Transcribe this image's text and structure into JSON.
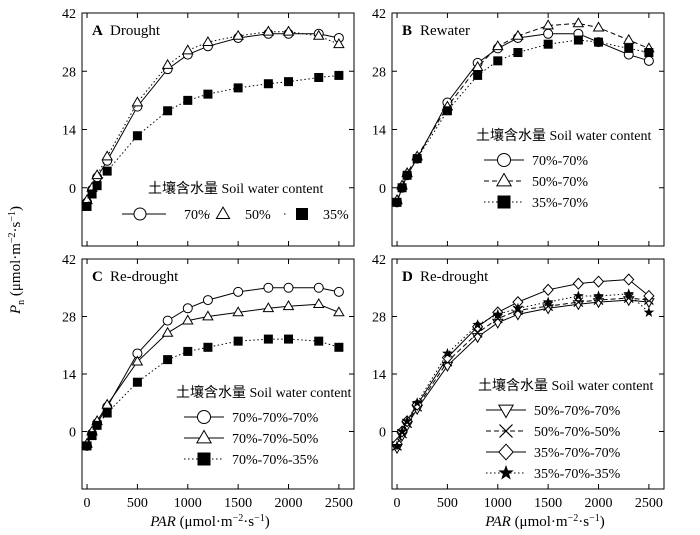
{
  "figure": {
    "xlabel": "PAR (μmol·m⁻²·s⁻¹)",
    "ylabel": "Pn (μmol·m⁻²·s⁻¹)"
  },
  "chart_data": [
    {
      "type": "line",
      "letter": "A",
      "title": "Drought",
      "xlim": [
        -50,
        2650
      ],
      "ylim": [
        -14,
        42
      ],
      "xticks": [
        0,
        500,
        1000,
        1500,
        2000,
        2500
      ],
      "yticks": [
        0,
        14,
        28,
        42
      ],
      "legend_title": "土壤含水量 Soil water content",
      "legend_layout": "row",
      "x": [
        0,
        50,
        100,
        200,
        500,
        800,
        1000,
        1200,
        1500,
        1800,
        2000,
        2300,
        2500
      ],
      "series": [
        {
          "name": "70%",
          "marker": "circle",
          "linestyle": "solid",
          "values": [
            -3.5,
            -0.5,
            2.5,
            6.5,
            19.5,
            28.5,
            32,
            34,
            36,
            37,
            37,
            37,
            36
          ]
        },
        {
          "name": "50%",
          "marker": "triangle-up",
          "linestyle": "dotted",
          "values": [
            -3,
            0,
            3,
            7.5,
            20.5,
            29.5,
            33,
            35,
            36.5,
            37.5,
            37.5,
            36.5,
            34.5
          ]
        },
        {
          "name": "35%",
          "marker": "square",
          "linestyle": "dotted",
          "values": [
            -4.5,
            -1.5,
            0.5,
            4,
            12.5,
            18.5,
            21,
            22.5,
            24,
            25,
            25.5,
            26.5,
            27
          ]
        }
      ]
    },
    {
      "type": "line",
      "letter": "B",
      "title": "Rewater",
      "xlim": [
        -50,
        2650
      ],
      "ylim": [
        -14,
        42
      ],
      "xticks": [
        0,
        500,
        1000,
        1500,
        2000,
        2500
      ],
      "yticks": [
        0,
        14,
        28,
        42
      ],
      "legend_title": "土壤含水量 Soil water content",
      "legend_layout": "column",
      "x": [
        0,
        50,
        100,
        200,
        500,
        800,
        1000,
        1200,
        1500,
        1800,
        2000,
        2300,
        2500
      ],
      "series": [
        {
          "name": "70%-70%",
          "marker": "circle",
          "linestyle": "solid",
          "values": [
            -3.5,
            0,
            3,
            7,
            20.5,
            30,
            33.5,
            36,
            37,
            37,
            35,
            32,
            30.5
          ]
        },
        {
          "name": "50%-70%",
          "marker": "triangle-up",
          "linestyle": "dashed",
          "values": [
            -3,
            0.5,
            3.5,
            7.5,
            19.5,
            29,
            34,
            36.5,
            39,
            39.5,
            38.5,
            35.5,
            33.5
          ]
        },
        {
          "name": "35%-70%",
          "marker": "square",
          "linestyle": "dotted",
          "values": [
            -3.5,
            0,
            3,
            7,
            18.5,
            27,
            30.5,
            32.5,
            34.5,
            35.5,
            35,
            33.5,
            32.5
          ]
        }
      ]
    },
    {
      "type": "line",
      "letter": "C",
      "title": "Re-drought",
      "xlim": [
        -50,
        2650
      ],
      "ylim": [
        -14,
        42
      ],
      "xticks": [
        0,
        500,
        1000,
        1500,
        2000,
        2500
      ],
      "yticks": [
        0,
        14,
        28,
        42
      ],
      "legend_title": "土壤含水量 Soil water content",
      "legend_layout": "column",
      "x": [
        0,
        50,
        100,
        200,
        500,
        800,
        1000,
        1200,
        1500,
        1800,
        2000,
        2300,
        2500
      ],
      "series": [
        {
          "name": "70%-70%-70%",
          "marker": "circle",
          "linestyle": "solid",
          "values": [
            -3.5,
            -0.5,
            2,
            6,
            19,
            27,
            30,
            32,
            34,
            35,
            35,
            35,
            34
          ]
        },
        {
          "name": "70%-70%-50%",
          "marker": "triangle-up",
          "linestyle": "solid",
          "values": [
            -3,
            0,
            2.5,
            6.5,
            17,
            24,
            27,
            28,
            29,
            30,
            30.5,
            31,
            29
          ]
        },
        {
          "name": "70%-70%-35%",
          "marker": "square",
          "linestyle": "dotted",
          "values": [
            -3.5,
            -1,
            1.5,
            4.5,
            12,
            17.5,
            19.5,
            20.5,
            22,
            22.5,
            22.5,
            22,
            20.5
          ]
        }
      ]
    },
    {
      "type": "line",
      "letter": "D",
      "title": "Re-drought",
      "xlim": [
        -50,
        2650
      ],
      "ylim": [
        -14,
        42
      ],
      "xticks": [
        0,
        500,
        1000,
        1500,
        2000,
        2500
      ],
      "yticks": [
        0,
        14,
        28,
        42
      ],
      "legend_title": "土壤含水量 Soil water content",
      "legend_layout": "column",
      "x": [
        0,
        50,
        100,
        200,
        500,
        800,
        1000,
        1200,
        1500,
        1800,
        2000,
        2300,
        2500
      ],
      "series": [
        {
          "name": "50%-70%-70%",
          "marker": "triangle-down",
          "linestyle": "solid",
          "values": [
            -4,
            -1,
            1.5,
            5.5,
            16,
            23,
            26.5,
            28.5,
            30,
            31,
            31.5,
            32,
            31.5
          ]
        },
        {
          "name": "50%-70%-50%",
          "marker": "x",
          "linestyle": "dashed",
          "values": [
            -3.5,
            -0.5,
            2,
            6,
            17,
            24,
            27.5,
            29.5,
            30.5,
            31.5,
            32,
            32.5,
            32
          ]
        },
        {
          "name": "35%-70%-70%",
          "marker": "diamond",
          "linestyle": "solid",
          "values": [
            -3,
            0,
            2.5,
            6.5,
            18,
            25.5,
            29,
            31.5,
            34.5,
            36,
            36.5,
            37,
            33
          ]
        },
        {
          "name": "35%-70%-35%",
          "marker": "star",
          "linestyle": "dotted",
          "values": [
            -3.5,
            0,
            2.5,
            7,
            19,
            26,
            28.5,
            30,
            31.5,
            33,
            33,
            33.5,
            29
          ]
        }
      ]
    }
  ]
}
